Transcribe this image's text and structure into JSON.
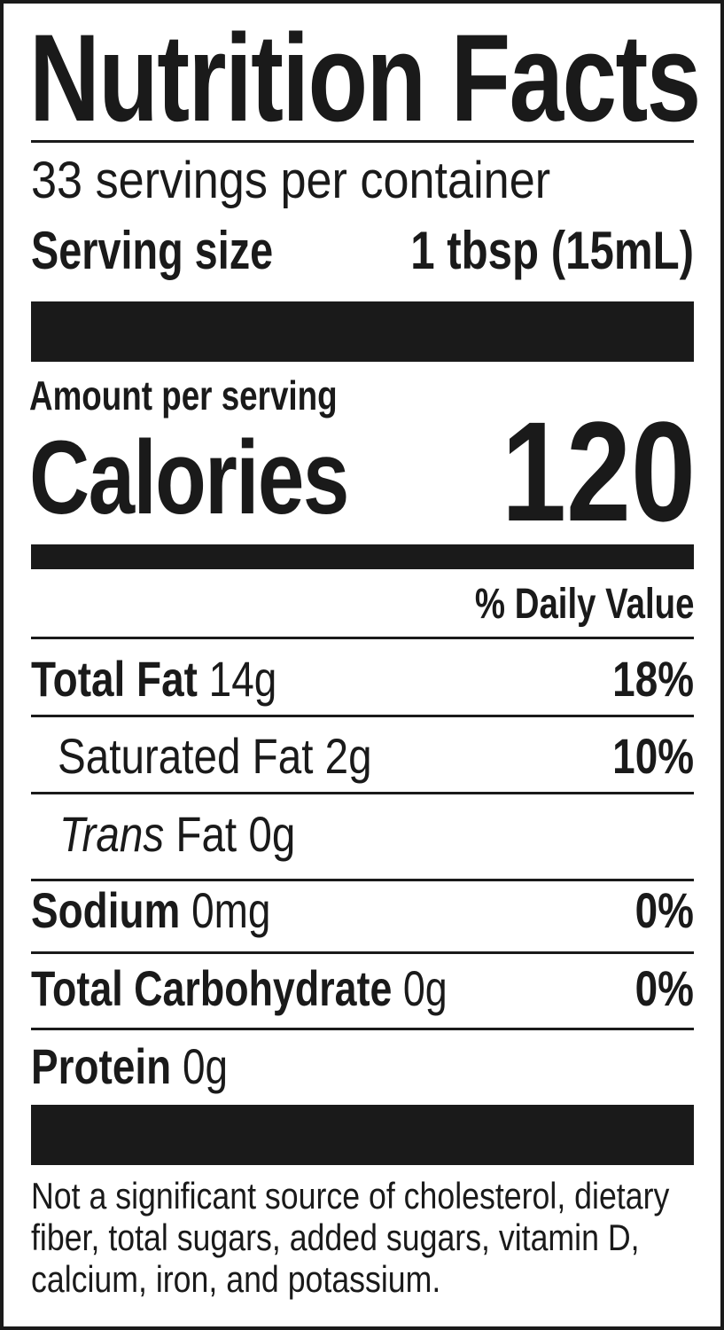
{
  "label": {
    "title": "Nutrition Facts",
    "servings_per_container": "33 servings per container",
    "serving_size_label": "Serving size",
    "serving_size_value": "1 tbsp (15mL)",
    "amount_per_serving": "Amount per serving",
    "calories_label": "Calories",
    "calories_value": "120",
    "daily_value_header": "% Daily Value",
    "nutrients": [
      {
        "name": "Total Fat",
        "amount": "14g",
        "dv": "18%"
      },
      {
        "name": "Saturated Fat",
        "amount": "2g",
        "dv": "10%"
      },
      {
        "name_italic": "Trans",
        "name": "Fat",
        "amount": "0g",
        "dv": ""
      },
      {
        "name": "Sodium",
        "amount": "0mg",
        "dv": "0%"
      },
      {
        "name": "Total Carbohydrate",
        "amount": "0g",
        "dv": "0%"
      },
      {
        "name": "Protein",
        "amount": "0g",
        "dv": ""
      }
    ],
    "footnote": "Not a significant source of cholesterol, dietary fiber, total sugars, added sugars, vitamin D, calcium, iron, and potassium."
  }
}
